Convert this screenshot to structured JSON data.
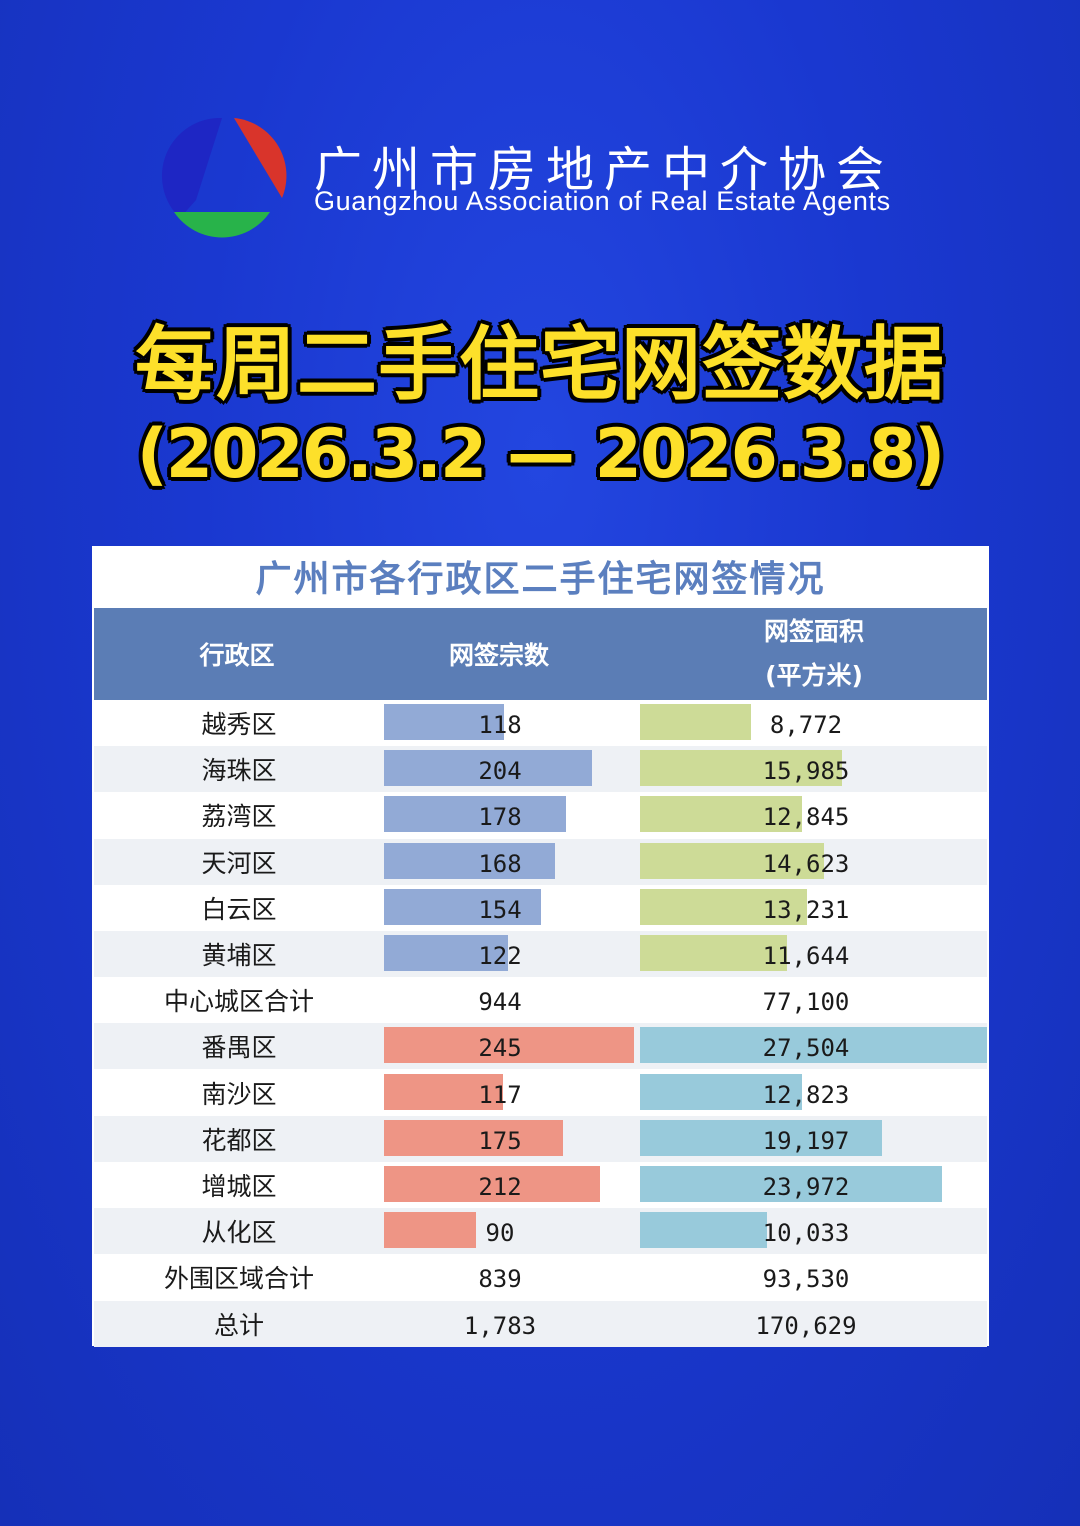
{
  "header": {
    "org_name_cn": "广州市房地产中介协会",
    "org_name_en": "Guangzhou Association of Real Estate Agents",
    "headline": "每周二手住宅网签数据",
    "date_range": "(2026.3.2 — 2026.3.8)"
  },
  "colors": {
    "background": "#1a38d0",
    "headline": "#fde02a",
    "table_header": "#5b7db5",
    "center_count_bar": "#92aad6",
    "center_area_bar": "#cddb97",
    "outer_count_bar": "#ee9585",
    "outer_area_bar": "#98cadb"
  },
  "chart_data": {
    "type": "table",
    "title": "广州市各行政区二手住宅网签情况",
    "columns": [
      "行政区",
      "网签宗数",
      "网签面积",
      "(平方米)"
    ],
    "count_max": 245,
    "area_max": 27504,
    "rows": [
      {
        "district": "越秀区",
        "count": 118,
        "count_label": "118",
        "area": 8772,
        "area_label": "8,772",
        "group": "center"
      },
      {
        "district": "海珠区",
        "count": 204,
        "count_label": "204",
        "area": 15985,
        "area_label": "15,985",
        "group": "center"
      },
      {
        "district": "荔湾区",
        "count": 178,
        "count_label": "178",
        "area": 12845,
        "area_label": "12,845",
        "group": "center"
      },
      {
        "district": "天河区",
        "count": 168,
        "count_label": "168",
        "area": 14623,
        "area_label": "14,623",
        "group": "center"
      },
      {
        "district": "白云区",
        "count": 154,
        "count_label": "154",
        "area": 13231,
        "area_label": "13,231",
        "group": "center"
      },
      {
        "district": "黄埔区",
        "count": 122,
        "count_label": "122",
        "area": 11644,
        "area_label": "11,644",
        "group": "center"
      },
      {
        "district": "中心城区合计",
        "count": 944,
        "count_label": "944",
        "area": 77100,
        "area_label": "77,100",
        "group": "subtotal"
      },
      {
        "district": "番禺区",
        "count": 245,
        "count_label": "245",
        "area": 27504,
        "area_label": "27,504",
        "group": "outer"
      },
      {
        "district": "南沙区",
        "count": 117,
        "count_label": "117",
        "area": 12823,
        "area_label": "12,823",
        "group": "outer"
      },
      {
        "district": "花都区",
        "count": 175,
        "count_label": "175",
        "area": 19197,
        "area_label": "19,197",
        "group": "outer"
      },
      {
        "district": "增城区",
        "count": 212,
        "count_label": "212",
        "area": 23972,
        "area_label": "23,972",
        "group": "outer"
      },
      {
        "district": "从化区",
        "count": 90,
        "count_label": "90",
        "area": 10033,
        "area_label": "10,033",
        "group": "outer"
      },
      {
        "district": "外围区域合计",
        "count": 839,
        "count_label": "839",
        "area": 93530,
        "area_label": "93,530",
        "group": "subtotal"
      },
      {
        "district": "总计",
        "count": 1783,
        "count_label": "1,783",
        "area": 170629,
        "area_label": "170,629",
        "group": "total"
      }
    ]
  }
}
